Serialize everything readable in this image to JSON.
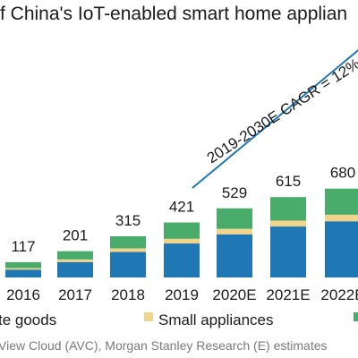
{
  "colors": {
    "seg1": "#1f78b4",
    "seg2": "#f0d48c",
    "seg3": "#49ac6b",
    "trend": "#1f78b4"
  },
  "chart_data": {
    "type": "bar",
    "stacked": true,
    "title": "f China's IoT-enabled smart home applian",
    "categories": [
      "2016",
      "2017",
      "2018",
      "2019",
      "2020E",
      "2021E",
      "2022E"
    ],
    "totals": [
      117,
      201,
      315,
      421,
      529,
      615,
      680
    ],
    "total_label_texts": [
      "117",
      "201",
      "315",
      "421",
      "529",
      "615",
      "680"
    ],
    "series": [
      {
        "name": "te goods",
        "values": [
          60,
          118,
          195,
          260,
          330,
          390,
          430
        ]
      },
      {
        "name": "Small appliances",
        "values": [
          12,
          20,
          28,
          36,
          42,
          45,
          50
        ]
      },
      {
        "name": "",
        "values": [
          45,
          63,
          92,
          125,
          157,
          180,
          200
        ]
      }
    ],
    "legend_placement": "bottom",
    "annotation": {
      "text": "2019-2030E CAGR = 12%",
      "from_category": "2019",
      "to_category": "2022E"
    },
    "grid": false,
    "source": "View Cloud (AVC), Morgan Stanley Research (E) estimates"
  }
}
